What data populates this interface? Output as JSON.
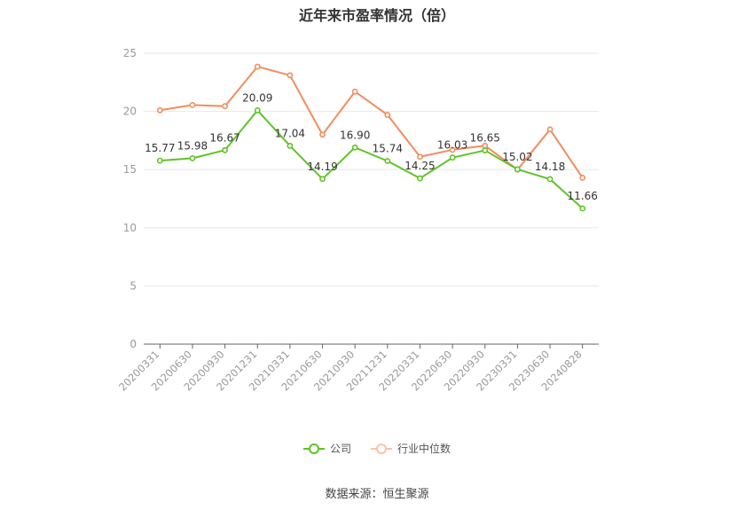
{
  "title": "近年来市盈率情况（倍）",
  "source": "数据来源：恒生聚源",
  "colors": {
    "company": "#5ec425",
    "industry": "#f28d5c",
    "grid": "#e6e8f0",
    "axis": "#666666",
    "tick": "#999999"
  },
  "chart_data": {
    "type": "line",
    "title": "近年来市盈率情况（倍）",
    "categories": [
      "20200331",
      "20200630",
      "20200930",
      "20201231",
      "20210331",
      "20210630",
      "20210930",
      "20211231",
      "20220331",
      "20220630",
      "20220930",
      "20230331",
      "20230630",
      "20240828"
    ],
    "ylim": [
      0,
      25
    ],
    "yticks": [
      0,
      5,
      10,
      15,
      20,
      25
    ],
    "grid": true,
    "legend_position": "bottom",
    "series": [
      {
        "name": "公司",
        "color": "#5ec425",
        "labeled": true,
        "values": [
          15.77,
          15.98,
          16.67,
          20.09,
          17.04,
          14.19,
          16.9,
          15.74,
          14.25,
          16.03,
          16.65,
          15.02,
          14.18,
          11.66
        ]
      },
      {
        "name": "行业中位数",
        "color": "#f28d5c",
        "labeled": false,
        "values": [
          20.1,
          20.55,
          20.45,
          23.85,
          23.1,
          18.0,
          21.7,
          19.7,
          16.1,
          16.7,
          17.05,
          15.0,
          18.45,
          14.3
        ]
      }
    ]
  }
}
